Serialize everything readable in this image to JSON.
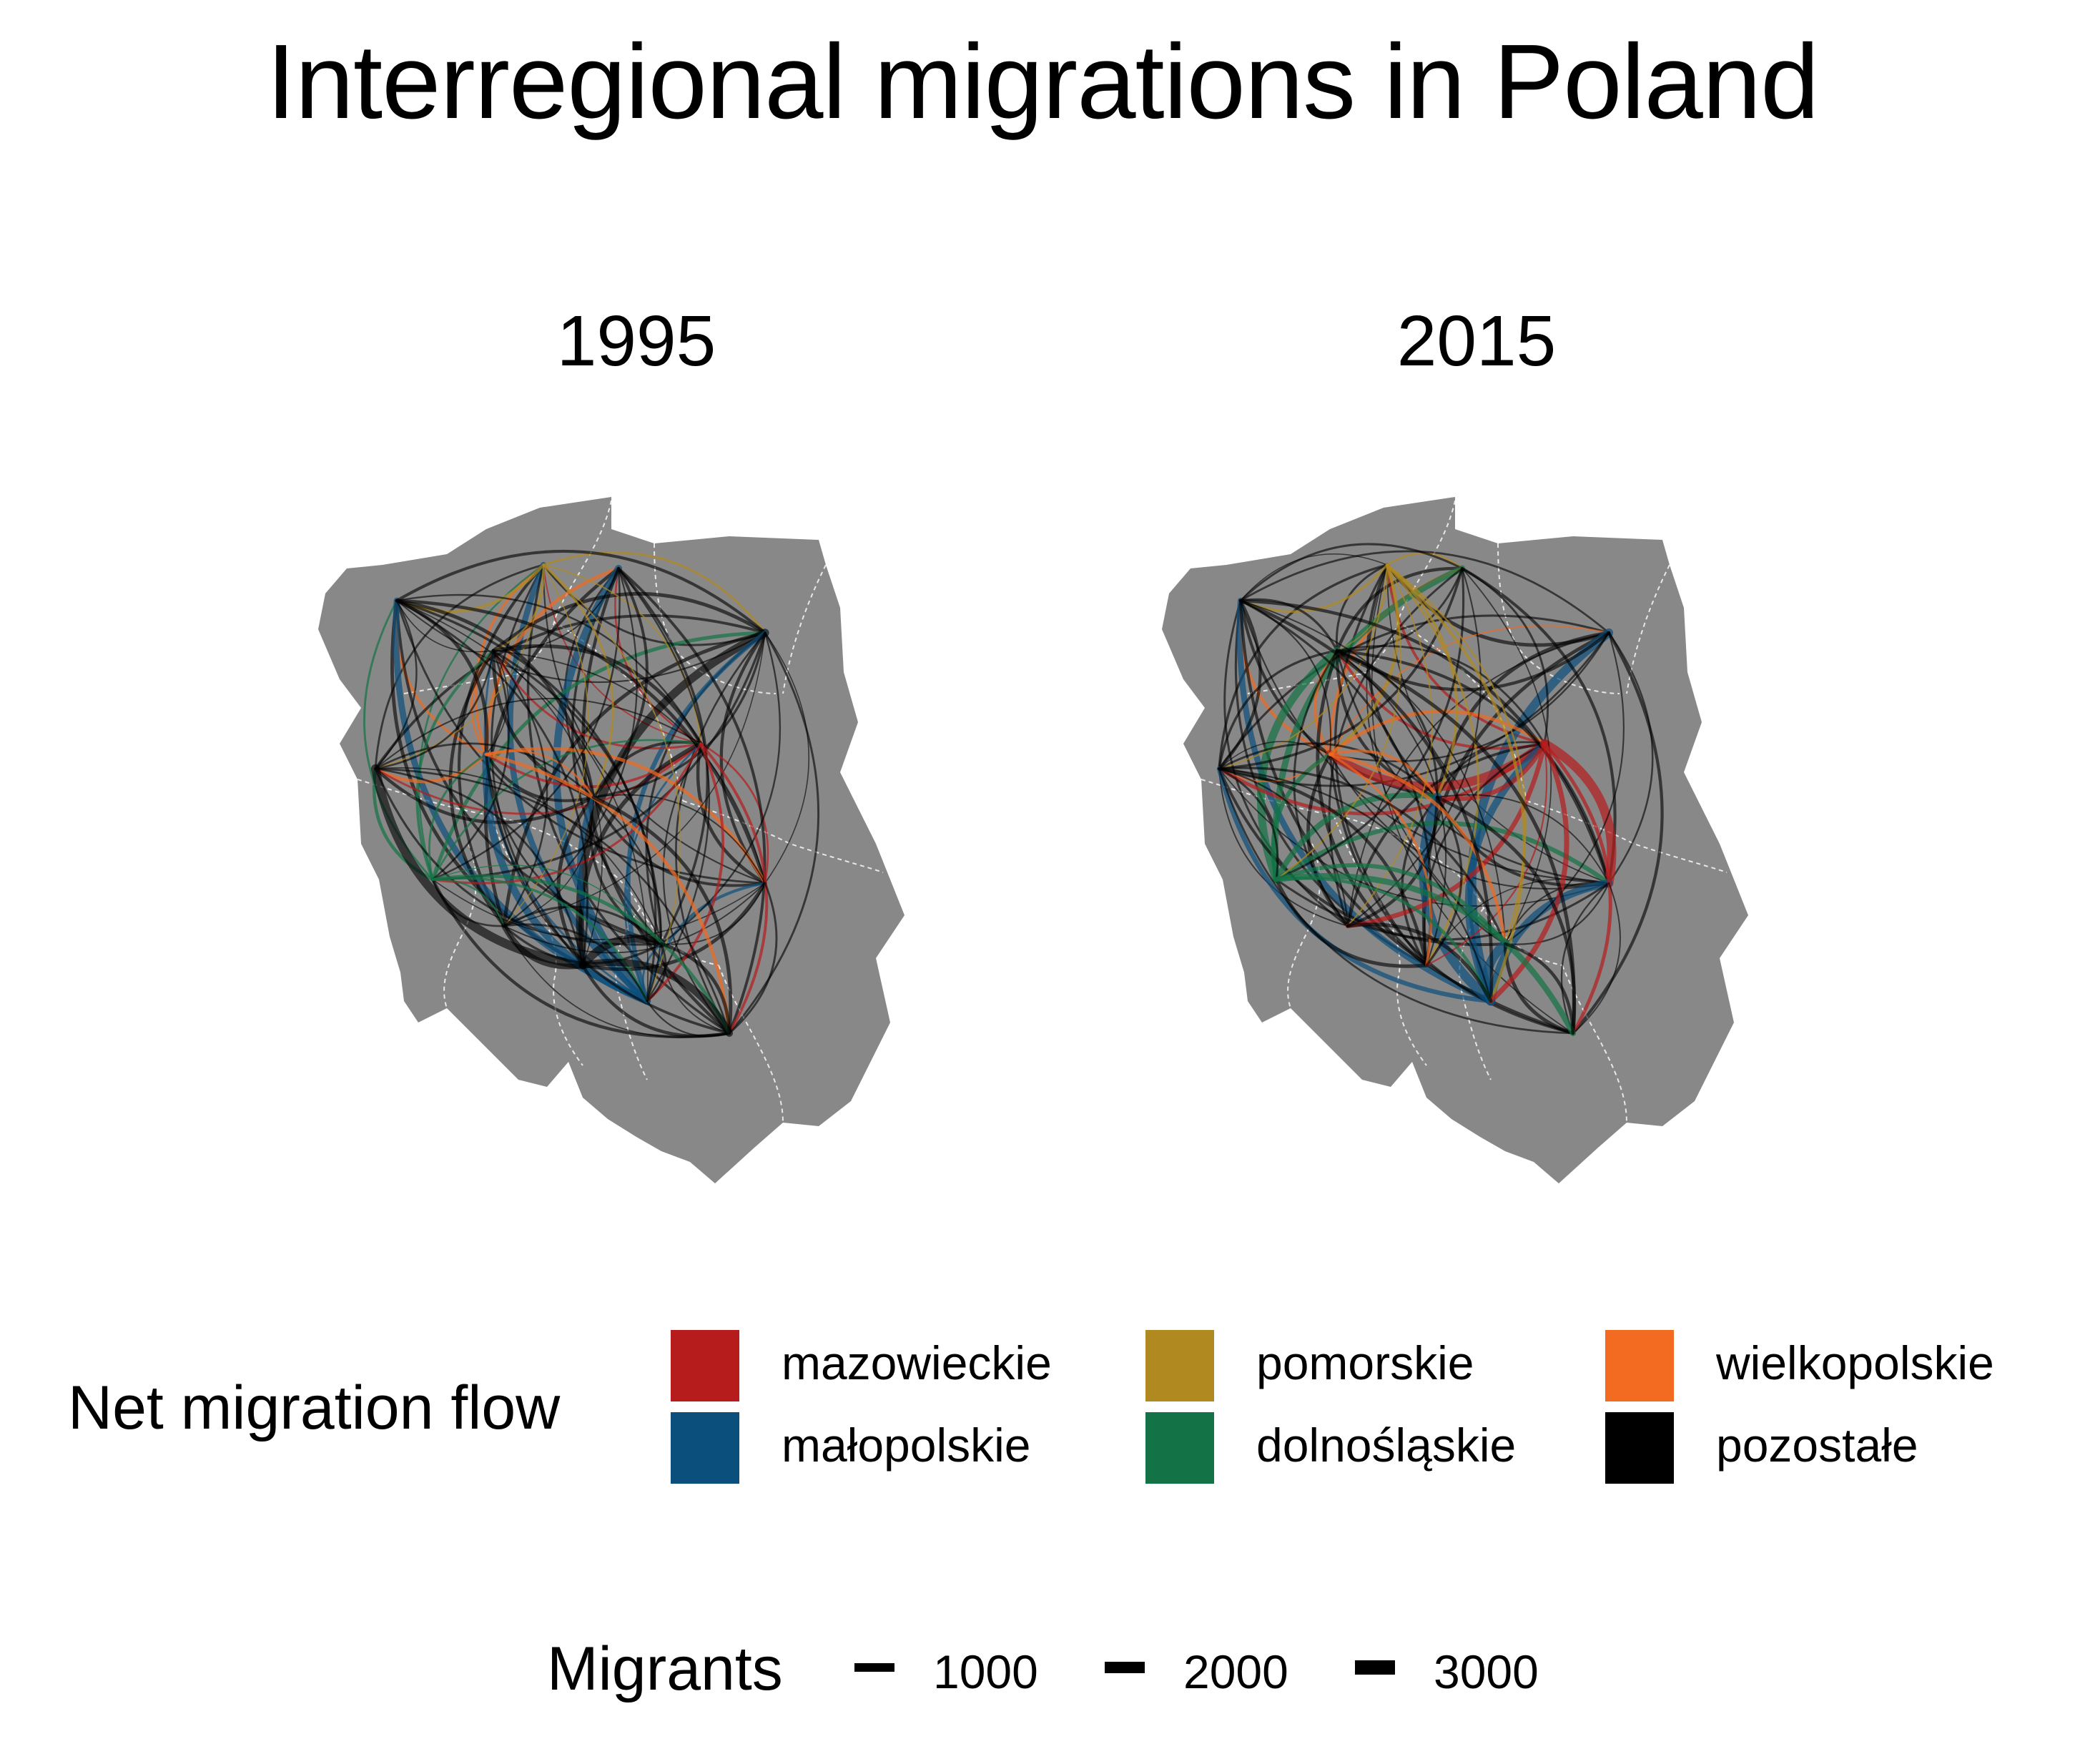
{
  "title": "Interregional migrations in Poland",
  "panels": [
    {
      "label": "1995"
    },
    {
      "label": "2015"
    }
  ],
  "legend": {
    "title": "Net migration flow",
    "items": [
      {
        "label": "mazowieckie",
        "color": "#b71c1c"
      },
      {
        "label": "małopolskie",
        "color": "#0b4f7c"
      },
      {
        "label": "pomorskie",
        "color": "#b08a20"
      },
      {
        "label": "dolnośląskie",
        "color": "#137346"
      },
      {
        "label": "wielkopolskie",
        "color": "#f26b21"
      },
      {
        "label": "pozostałe",
        "color": "#000000"
      }
    ]
  },
  "size_legend": {
    "title": "Migrants",
    "items": [
      {
        "label": "1000",
        "value": 1000
      },
      {
        "label": "2000",
        "value": 2000
      },
      {
        "label": "3000",
        "value": 3000
      }
    ]
  },
  "map_fill": "#888888",
  "border_color": "#ffffff"
}
